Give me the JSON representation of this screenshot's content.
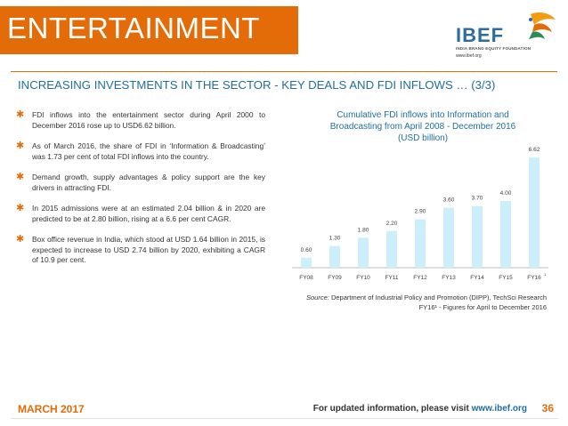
{
  "header": {
    "title": "ENTERTAINMENT"
  },
  "logo": {
    "name": "IBEF",
    "tagline": "INDIA BRAND EQUITY FOUNDATION",
    "url": "www.ibef.org"
  },
  "subtitle": "INCREASING INVESTMENTS IN THE SECTOR - KEY DEALS AND FDI INFLOWS … (3/3)",
  "bullets": [
    "FDI inflows into the entertainment sector during April 2000 to December 2016 rose up to USD6.62 billion.",
    "As of March 2016, the share of FDI in ‘Information & Broadcasting’ was 1.73 per cent of total FDI inflows into the country.",
    "Demand growth, supply advantages & policy support are the key drivers in attracting FDI.",
    "In 2015 admissions were at an estimated 2.04 billion & in 2020 are predicted to be at 2.80 billion, rising at a 6.6 per cent CAGR.",
    "Box office revenue in India, which stood at USD 1.64 billion in 2015, is expected to increase to USD 2.74 billion by 2020, exhibiting a CAGR of 10.9 per cent."
  ],
  "chart_data": {
    "type": "bar",
    "title": "Cumulative FDI inflows into Information and Broadcasting from April 2008 - December 2016 (USD billion)",
    "title_lines": [
      "Cumulative FDI inflows into Information and",
      "Broadcasting from April 2008 - December 2016",
      "(USD billion)"
    ],
    "categories": [
      "FY08",
      "FY09",
      "FY10",
      "FY11",
      "FY12",
      "FY13",
      "FY14",
      "FY15",
      "FY16"
    ],
    "values": [
      0.6,
      1.3,
      1.8,
      2.2,
      2.9,
      3.6,
      3.7,
      4.0,
      6.62
    ],
    "value_labels": [
      "0.60",
      "1.30",
      "1.80",
      "2.20",
      "2.90",
      "3.60",
      "3.70",
      "4.00",
      "6.62"
    ],
    "last_category_marker": "1",
    "ylim": [
      0,
      7.2
    ],
    "bar_color": "#cdeffc",
    "grid": false
  },
  "source": {
    "label": "Source:",
    "text": "Department of Industrial Policy and Promotion (DIPP), TechSci Research",
    "note": "FY16¹ - Figures for April to December 2016"
  },
  "footer": {
    "date": "MARCH 2017",
    "text": "For updated information, please visit",
    "link": "www.ibef.org",
    "page": "36"
  },
  "colors": {
    "accent": "#e36c09",
    "blue": "#1f6f9c"
  }
}
